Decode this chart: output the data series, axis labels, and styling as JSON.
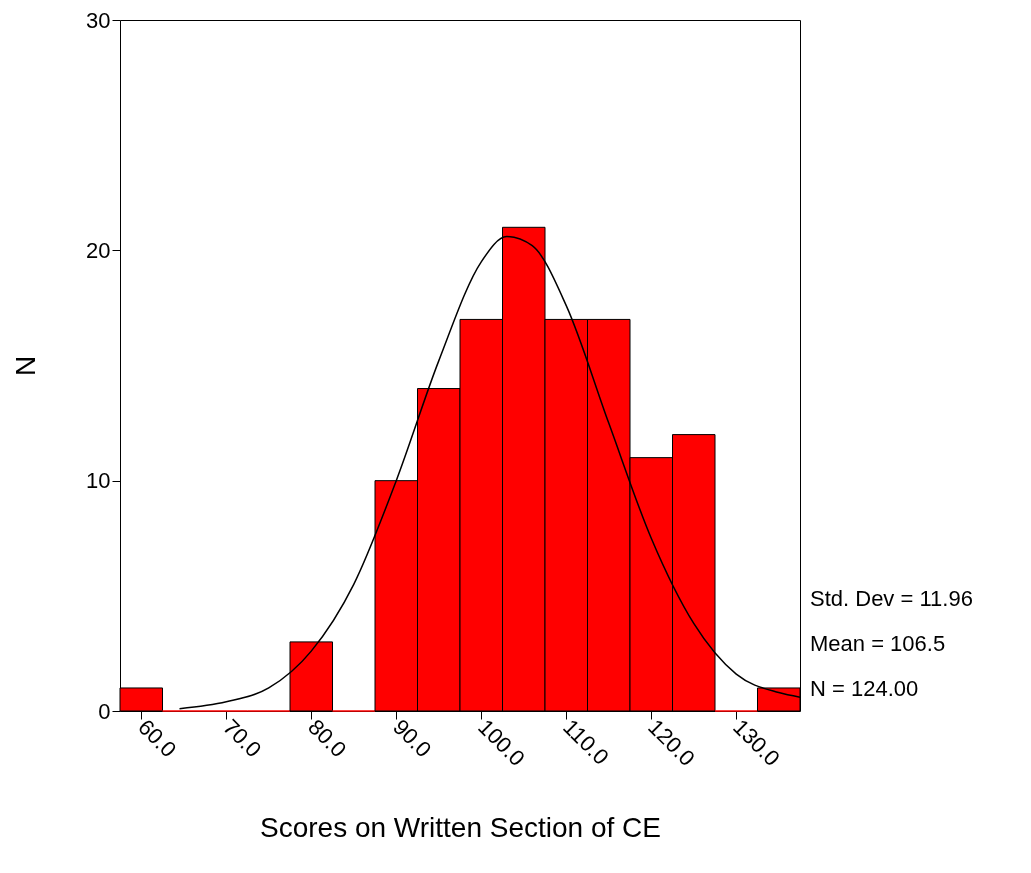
{
  "chart_data": {
    "type": "histogram",
    "xlabel": "Scores on Written Section of CE",
    "ylabel": "N",
    "bins": [
      57.5,
      62.5,
      67.5,
      72.5,
      77.5,
      82.5,
      87.5,
      92.5,
      97.5,
      102.5,
      107.5,
      112.5,
      117.5,
      122.5,
      127.5,
      132.5,
      137.5
    ],
    "values": [
      1,
      0,
      0,
      0,
      3,
      0,
      10,
      14,
      17,
      21,
      17,
      17,
      11,
      12,
      0,
      1
    ],
    "color": "#ff0000",
    "series": [
      {
        "type": "line",
        "color": "#000000",
        "x": [
          64.5,
          70,
          75,
          80,
          85,
          90,
          95,
          100,
          103,
          106,
          110,
          115,
          120,
          125,
          130,
          135,
          137.5
        ],
        "values": [
          0.1,
          0.4,
          1.0,
          2.6,
          5.5,
          10.0,
          15.2,
          19.5,
          20.6,
          20.2,
          17.6,
          12.5,
          7.5,
          3.8,
          1.6,
          0.8,
          0.6
        ]
      }
    ],
    "xlim": [
      57.5,
      137.5
    ],
    "xticks": [
      {
        "value": 60,
        "label": "60.0"
      },
      {
        "value": 70,
        "label": "70.0"
      },
      {
        "value": 80,
        "label": "80.0"
      },
      {
        "value": 90,
        "label": "90.0"
      },
      {
        "value": 100,
        "label": "100.0"
      },
      {
        "value": 110,
        "label": "110.0"
      },
      {
        "value": 120,
        "label": "120.0"
      },
      {
        "value": 130,
        "label": "130.0"
      }
    ],
    "ylim": [
      0,
      30
    ],
    "yticks": [
      0,
      10,
      20,
      30
    ],
    "annotations": [
      "Std. Dev = 11.96",
      "Mean = 106.5",
      "N = 124.00"
    ]
  }
}
